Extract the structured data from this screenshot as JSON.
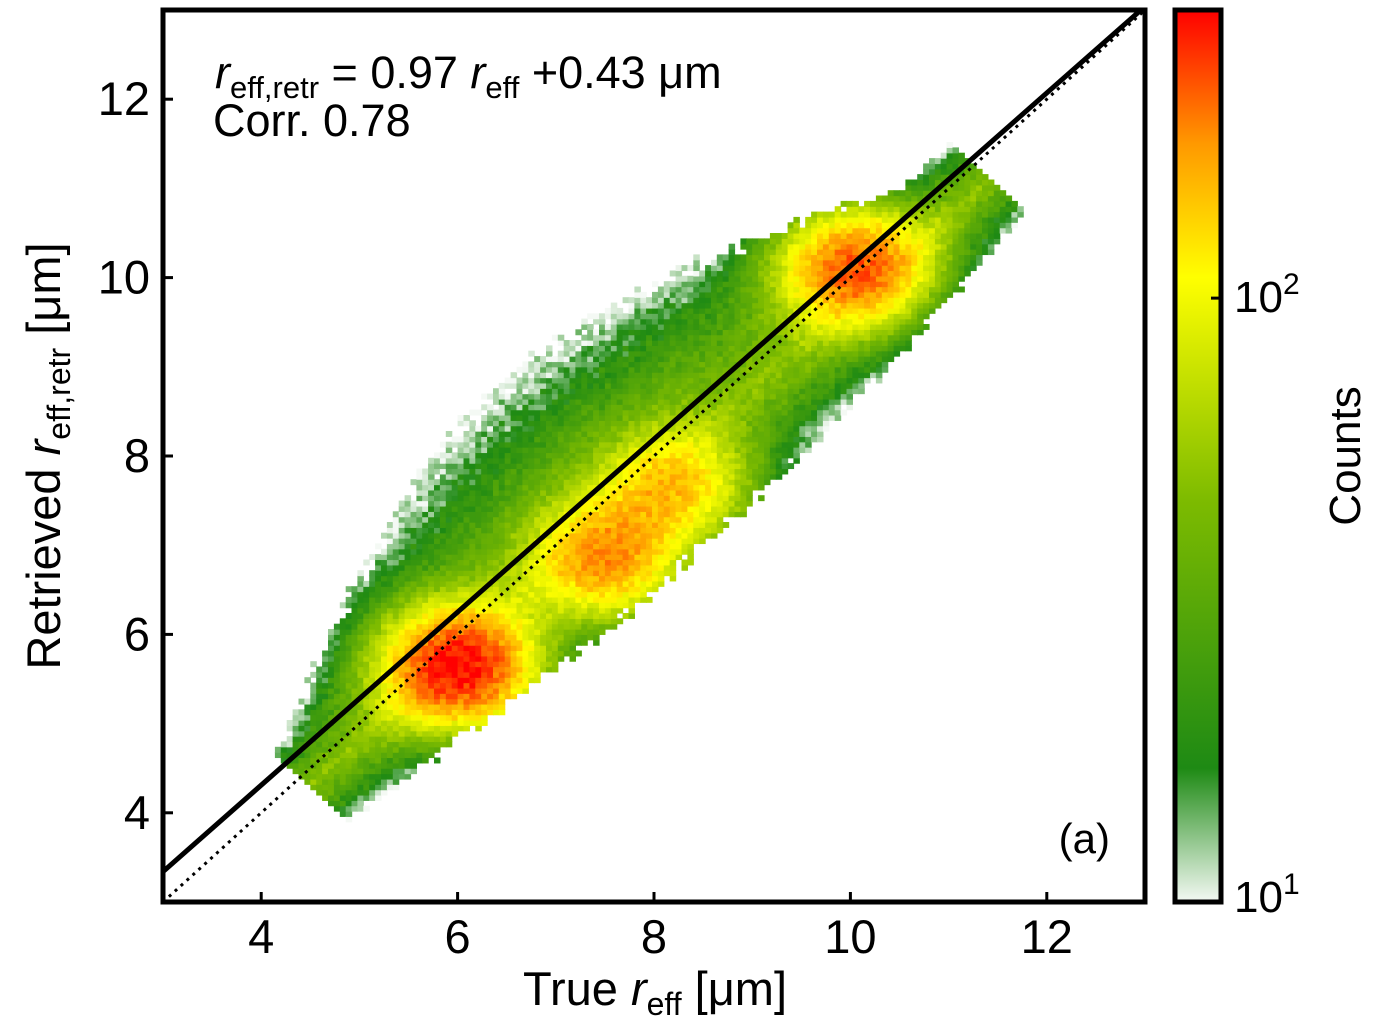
{
  "chart_data": {
    "type": "heatmap",
    "subtype": "2d-histogram-density",
    "xlabel": {
      "prefix": "True ",
      "var": "r",
      "sub": "eff",
      "unit": " [μm]"
    },
    "ylabel": {
      "prefix": "Retrieved ",
      "var": "r",
      "sub": "eff,retr",
      "unit": " [μm]"
    },
    "xlim": [
      3,
      13
    ],
    "ylim": [
      3,
      13
    ],
    "xticks": [
      4,
      6,
      8,
      10,
      12
    ],
    "yticks": [
      4,
      6,
      8,
      10,
      12
    ],
    "grid": false,
    "panel_label": "(a)",
    "annotation": {
      "var1": "r",
      "sub1": "eff,retr",
      "eq": " = 0.97 ",
      "var2": "r",
      "sub2": "eff",
      "rest": " +0.43 μm",
      "corr": "Corr. 0.78"
    },
    "fit_line": {
      "slope": 0.97,
      "intercept": 0.43,
      "style": "solid"
    },
    "identity_line": {
      "slope": 1,
      "intercept": 0,
      "style": "dotted"
    },
    "colorbar": {
      "label": "Counts",
      "scale": "log",
      "range": [
        10,
        300
      ],
      "tick_values": [
        10,
        100
      ],
      "tick_base": [
        "10",
        "10"
      ],
      "tick_exp": [
        "1",
        "2"
      ],
      "colors": [
        "#f4f9f4",
        "#1e8a14",
        "#7dbb00",
        "#ffff00",
        "#ff9900",
        "#ff0000"
      ]
    },
    "density_axis": [
      [
        4.6,
        4.4
      ],
      [
        11.2,
        10.9
      ]
    ],
    "density_cores": [
      {
        "x": 6.0,
        "y": 5.6,
        "peak": 300
      },
      {
        "x": 7.5,
        "y": 6.8,
        "peak": 190
      },
      {
        "x": 8.2,
        "y": 7.6,
        "peak": 150
      },
      {
        "x": 10.0,
        "y": 10.1,
        "peak": 230
      }
    ]
  }
}
